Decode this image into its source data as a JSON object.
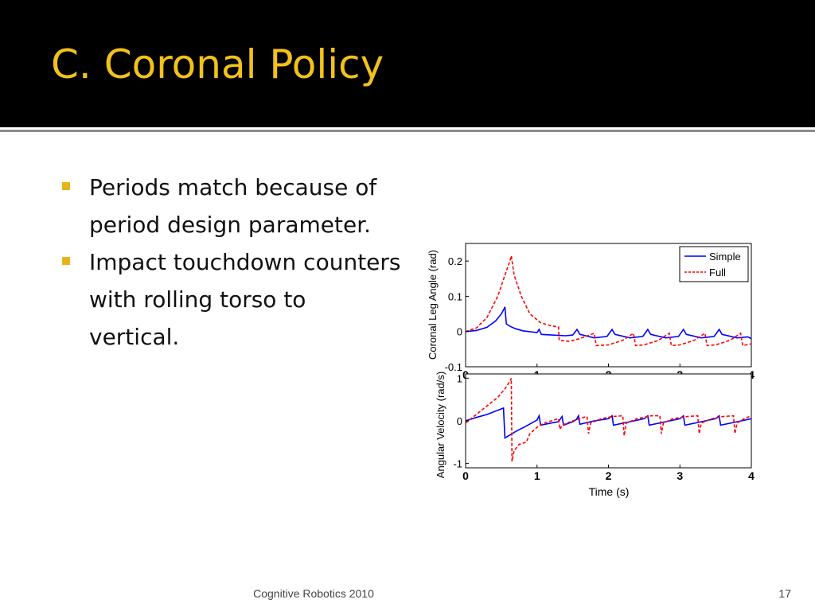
{
  "slide": {
    "title": "C. Coronal Policy",
    "bullets": [
      "Periods match because of period design parameter.",
      "Impact touchdown counters with rolling torso to vertical."
    ],
    "footer_center": "Cognitive Robotics 2010",
    "page_number": "17"
  },
  "colors": {
    "title_bg": "#000000",
    "title_text": "#f2c21b",
    "bullet_marker": "#e6b417",
    "simple_series": "#0000ff",
    "full_series": "#ff0000"
  },
  "chart_data": [
    {
      "type": "line",
      "title": "",
      "xlabel": "",
      "ylabel": "Coronal Leg Angle (rad)",
      "xlim": [
        0,
        4
      ],
      "ylim": [
        -0.1,
        0.25
      ],
      "xticks": [
        "0",
        "1",
        "2",
        "3",
        "4"
      ],
      "yticks": [
        "-0.1",
        "0",
        "0.1",
        "0.2"
      ],
      "ytick_values": [
        -0.1,
        0,
        0.1,
        0.2
      ],
      "legend": {
        "position": "top-right",
        "entries": [
          "Simple",
          "Full"
        ]
      },
      "series": [
        {
          "name": "Simple",
          "style": "solid",
          "points": [
            [
              0,
              0
            ],
            [
              0.15,
              0.003
            ],
            [
              0.3,
              0.012
            ],
            [
              0.42,
              0.03
            ],
            [
              0.5,
              0.05
            ],
            [
              0.54,
              0.065
            ],
            [
              0.55,
              0.07
            ],
            [
              0.57,
              0.022
            ],
            [
              0.62,
              0.015
            ],
            [
              0.7,
              0.008
            ],
            [
              0.8,
              0.002
            ],
            [
              1.0,
              -0.003
            ],
            [
              1.03,
              0.006
            ],
            [
              1.06,
              -0.008
            ],
            [
              1.2,
              -0.01
            ],
            [
              1.4,
              -0.012
            ],
            [
              1.5,
              -0.01
            ],
            [
              1.56,
              0.006
            ],
            [
              1.6,
              -0.008
            ],
            [
              1.8,
              -0.018
            ],
            [
              1.98,
              -0.014
            ],
            [
              2.05,
              0.006
            ],
            [
              2.09,
              -0.008
            ],
            [
              2.3,
              -0.018
            ],
            [
              2.48,
              -0.014
            ],
            [
              2.55,
              0.006
            ],
            [
              2.59,
              -0.008
            ],
            [
              2.8,
              -0.018
            ],
            [
              2.98,
              -0.014
            ],
            [
              3.05,
              0.006
            ],
            [
              3.09,
              -0.008
            ],
            [
              3.3,
              -0.018
            ],
            [
              3.48,
              -0.014
            ],
            [
              3.55,
              0.006
            ],
            [
              3.59,
              -0.008
            ],
            [
              3.8,
              -0.018
            ],
            [
              3.95,
              -0.015
            ],
            [
              4,
              -0.02
            ]
          ]
        },
        {
          "name": "Full",
          "style": "dashed",
          "points": [
            [
              0,
              0
            ],
            [
              0.15,
              0.01
            ],
            [
              0.3,
              0.04
            ],
            [
              0.45,
              0.1
            ],
            [
              0.55,
              0.16
            ],
            [
              0.62,
              0.2
            ],
            [
              0.64,
              0.215
            ],
            [
              0.68,
              0.16
            ],
            [
              0.78,
              0.1
            ],
            [
              0.9,
              0.05
            ],
            [
              1.05,
              0.025
            ],
            [
              1.2,
              0.016
            ],
            [
              1.3,
              0.013
            ],
            [
              1.31,
              -0.025
            ],
            [
              1.45,
              -0.028
            ],
            [
              1.6,
              -0.02
            ],
            [
              1.8,
              -0.005
            ],
            [
              1.83,
              -0.04
            ],
            [
              2.0,
              -0.038
            ],
            [
              2.2,
              -0.025
            ],
            [
              2.35,
              -0.005
            ],
            [
              2.38,
              -0.04
            ],
            [
              2.5,
              -0.038
            ],
            [
              2.7,
              -0.025
            ],
            [
              2.85,
              -0.005
            ],
            [
              2.88,
              -0.04
            ],
            [
              3.0,
              -0.038
            ],
            [
              3.2,
              -0.025
            ],
            [
              3.35,
              -0.005
            ],
            [
              3.38,
              -0.04
            ],
            [
              3.5,
              -0.038
            ],
            [
              3.7,
              -0.025
            ],
            [
              3.85,
              -0.005
            ],
            [
              3.88,
              -0.04
            ],
            [
              4,
              -0.035
            ]
          ]
        }
      ]
    },
    {
      "type": "line",
      "title": "",
      "xlabel": "Time (s)",
      "ylabel": "Angular Velocity (rad/s)",
      "xlim": [
        0,
        4
      ],
      "ylim": [
        -1.1,
        1.1
      ],
      "xticks": [
        "0",
        "1",
        "2",
        "3",
        "4"
      ],
      "yticks": [
        "-1",
        "0",
        "1"
      ],
      "ytick_values": [
        -1,
        0,
        1
      ],
      "series": [
        {
          "name": "Simple",
          "style": "solid",
          "points": [
            [
              0,
              0
            ],
            [
              0.15,
              0.08
            ],
            [
              0.3,
              0.15
            ],
            [
              0.45,
              0.25
            ],
            [
              0.5,
              0.28
            ],
            [
              0.53,
              0.3
            ],
            [
              0.55,
              -0.4
            ],
            [
              0.7,
              -0.25
            ],
            [
              0.85,
              -0.12
            ],
            [
              1.0,
              0.02
            ],
            [
              1.03,
              0.12
            ],
            [
              1.05,
              -0.1
            ],
            [
              1.2,
              -0.05
            ],
            [
              1.3,
              -0.02
            ],
            [
              1.35,
              0.1
            ],
            [
              1.37,
              -0.1
            ],
            [
              1.5,
              -0.02
            ],
            [
              1.55,
              0.03
            ],
            [
              1.58,
              0.12
            ],
            [
              1.6,
              -0.08
            ],
            [
              1.8,
              0
            ],
            [
              2.0,
              0.05
            ],
            [
              2.05,
              0.12
            ],
            [
              2.07,
              -0.1
            ],
            [
              2.3,
              -0.02
            ],
            [
              2.5,
              0.05
            ],
            [
              2.55,
              0.12
            ],
            [
              2.57,
              -0.1
            ],
            [
              2.8,
              -0.02
            ],
            [
              3.0,
              0.05
            ],
            [
              3.05,
              0.12
            ],
            [
              3.07,
              -0.1
            ],
            [
              3.3,
              -0.02
            ],
            [
              3.5,
              0.05
            ],
            [
              3.55,
              0.12
            ],
            [
              3.57,
              -0.1
            ],
            [
              3.8,
              -0.02
            ],
            [
              4,
              0.05
            ]
          ]
        },
        {
          "name": "Full",
          "style": "dashed",
          "points": [
            [
              0,
              -0.05
            ],
            [
              0.15,
              0.15
            ],
            [
              0.3,
              0.35
            ],
            [
              0.45,
              0.55
            ],
            [
              0.55,
              0.75
            ],
            [
              0.63,
              0.95
            ],
            [
              0.64,
              1.0
            ],
            [
              0.65,
              -0.95
            ],
            [
              0.68,
              -0.7
            ],
            [
              0.75,
              -0.55
            ],
            [
              0.85,
              -0.5
            ],
            [
              0.9,
              -0.3
            ],
            [
              1.0,
              -0.15
            ],
            [
              1.1,
              -0.05
            ],
            [
              1.2,
              0
            ],
            [
              1.3,
              0.05
            ],
            [
              1.32,
              -0.2
            ],
            [
              1.35,
              -0.1
            ],
            [
              1.5,
              0
            ],
            [
              1.65,
              0.08
            ],
            [
              1.7,
              0.1
            ],
            [
              1.72,
              -0.3
            ],
            [
              1.75,
              -0.05
            ],
            [
              1.9,
              0.05
            ],
            [
              2.05,
              0.1
            ],
            [
              2.2,
              0.12
            ],
            [
              2.22,
              -0.35
            ],
            [
              2.25,
              -0.05
            ],
            [
              2.4,
              0.05
            ],
            [
              2.6,
              0.12
            ],
            [
              2.72,
              0.12
            ],
            [
              2.74,
              -0.3
            ],
            [
              2.77,
              -0.05
            ],
            [
              2.9,
              0.05
            ],
            [
              3.1,
              0.1
            ],
            [
              3.25,
              0.12
            ],
            [
              3.27,
              -0.3
            ],
            [
              3.3,
              -0.05
            ],
            [
              3.45,
              0.05
            ],
            [
              3.6,
              0.1
            ],
            [
              3.75,
              0.12
            ],
            [
              3.77,
              -0.3
            ],
            [
              3.8,
              -0.05
            ],
            [
              3.9,
              0.05
            ],
            [
              4,
              0.12
            ]
          ]
        }
      ]
    }
  ]
}
